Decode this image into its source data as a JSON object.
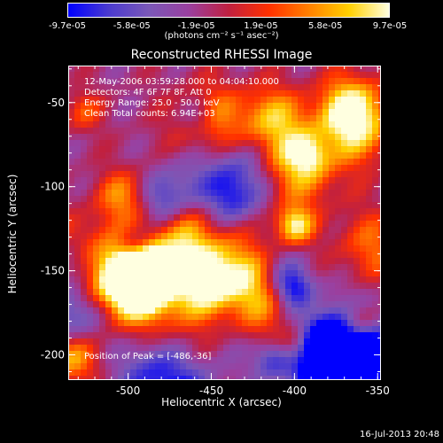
{
  "colorbar": {
    "ticks": [
      "-9.7e-05",
      "-5.8e-05",
      "-1.9e-05",
      "1.9e-05",
      "5.8e-05",
      "9.7e-05"
    ],
    "unit_label": "(photons cm⁻² s⁻¹ asec⁻²)",
    "min": -9.7e-05,
    "max": 9.7e-05
  },
  "title": "Reconstructed RHESSI Image",
  "overlay": {
    "line1": "12-May-2006 03:59:28.000 to 04:04:10.000",
    "line2": "Detectors: 4F 6F 7F 8F, Att 0",
    "line3": "Energy Range: 25.0 - 50.0 keV",
    "line4": "Clean    Total counts: 6.94E+03",
    "peak": "Position of Peak = [-486,-36]"
  },
  "axes": {
    "xlabel": "Heliocentric X (arcsec)",
    "ylabel": "Heliocentric Y (arcsec)",
    "xticks": [
      "-500",
      "-450",
      "-400",
      "-350"
    ],
    "yticks": [
      "-50",
      "-100",
      "-150",
      "-200"
    ],
    "xrange": [
      -536,
      -348
    ],
    "yrange": [
      -215,
      -28
    ]
  },
  "timestamp": "16-Jul-2013 20:48",
  "colors": {
    "background": "#000000",
    "foreground": "#ffffff",
    "colormap": [
      "#0000ff",
      "#4a3ad0",
      "#7a58b8",
      "#9a40a0",
      "#c02040",
      "#ff3000",
      "#ff8000",
      "#ffd000",
      "#ffffe0"
    ]
  }
}
